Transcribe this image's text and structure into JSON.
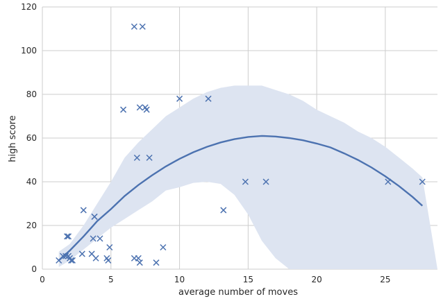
{
  "chart_data": {
    "type": "scatter",
    "title": "",
    "xlabel": "average number of moves",
    "ylabel": "high score",
    "xlim": [
      0,
      28.8
    ],
    "ylim": [
      0,
      120
    ],
    "xticks": [
      0,
      5,
      10,
      15,
      20,
      25
    ],
    "yticks": [
      0,
      20,
      40,
      60,
      80,
      100,
      120
    ],
    "grid": true,
    "marker": "x",
    "colors": {
      "points": "#4c72b0",
      "fit": "#4c72b0",
      "band": "#dde4f1",
      "grid": "#cccccc"
    },
    "points": [
      [
        6.7,
        111
      ],
      [
        7.3,
        111
      ],
      [
        10.0,
        78
      ],
      [
        12.1,
        78
      ],
      [
        7.1,
        74
      ],
      [
        7.5,
        74
      ],
      [
        7.6,
        73
      ],
      [
        5.9,
        73
      ],
      [
        6.9,
        51
      ],
      [
        7.8,
        51
      ],
      [
        14.8,
        40
      ],
      [
        16.3,
        40
      ],
      [
        25.2,
        40
      ],
      [
        27.7,
        40
      ],
      [
        3.0,
        27
      ],
      [
        13.2,
        27
      ],
      [
        3.8,
        24
      ],
      [
        3.8,
        24
      ],
      [
        1.9,
        15
      ],
      [
        1.8,
        15
      ],
      [
        3.7,
        14
      ],
      [
        4.2,
        14
      ],
      [
        8.8,
        10
      ],
      [
        4.9,
        10
      ],
      [
        3.6,
        7
      ],
      [
        2.9,
        7
      ],
      [
        1.2,
        4
      ],
      [
        1.5,
        6
      ],
      [
        1.7,
        6
      ],
      [
        1.9,
        6
      ],
      [
        2.0,
        5
      ],
      [
        2.1,
        4
      ],
      [
        2.2,
        4
      ],
      [
        3.9,
        5
      ],
      [
        4.7,
        5
      ],
      [
        4.8,
        4
      ],
      [
        6.7,
        5
      ],
      [
        7.0,
        5
      ],
      [
        7.1,
        3
      ],
      [
        8.3,
        3
      ]
    ],
    "fit": {
      "curve": [
        [
          1.2,
          4
        ],
        [
          2,
          8.5
        ],
        [
          3,
          15
        ],
        [
          4,
          22
        ],
        [
          5,
          27.5
        ],
        [
          6,
          33.5
        ],
        [
          7,
          38.5
        ],
        [
          8,
          43
        ],
        [
          9,
          47
        ],
        [
          10,
          50.5
        ],
        [
          11,
          53.5
        ],
        [
          12,
          56
        ],
        [
          13,
          58
        ],
        [
          14,
          59.5
        ],
        [
          15,
          60.5
        ],
        [
          16,
          61
        ],
        [
          17,
          60.7
        ],
        [
          18,
          60
        ],
        [
          19,
          59
        ],
        [
          20,
          57.5
        ],
        [
          21,
          55.7
        ],
        [
          22,
          53
        ],
        [
          23,
          50
        ],
        [
          24,
          46.5
        ],
        [
          25,
          42.5
        ],
        [
          26,
          38
        ],
        [
          27,
          33
        ],
        [
          27.7,
          29
        ]
      ],
      "band_upper": [
        [
          1.2,
          8
        ],
        [
          2,
          11.5
        ],
        [
          3,
          20
        ],
        [
          4,
          30
        ],
        [
          5,
          40
        ],
        [
          6,
          51
        ],
        [
          7,
          58
        ],
        [
          8,
          64
        ],
        [
          9,
          70
        ],
        [
          10,
          74
        ],
        [
          11,
          78
        ],
        [
          12,
          81
        ],
        [
          13,
          83
        ],
        [
          14,
          84
        ],
        [
          15,
          84
        ],
        [
          16,
          84
        ],
        [
          17,
          82
        ],
        [
          18,
          80
        ],
        [
          19,
          77
        ],
        [
          20,
          73
        ],
        [
          21,
          70
        ],
        [
          22,
          67
        ],
        [
          23,
          63
        ],
        [
          24,
          60
        ],
        [
          25,
          56
        ],
        [
          26,
          51
        ],
        [
          27,
          46
        ],
        [
          27.7,
          42
        ]
      ],
      "band_lower": [
        [
          1.2,
          1
        ],
        [
          2,
          4
        ],
        [
          3,
          9
        ],
        [
          4,
          14
        ],
        [
          5,
          19
        ],
        [
          6,
          23
        ],
        [
          7,
          27
        ],
        [
          8,
          31
        ],
        [
          9,
          36
        ],
        [
          10,
          37.5
        ],
        [
          11,
          39.5
        ],
        [
          12,
          40
        ],
        [
          13,
          39
        ],
        [
          14,
          34
        ],
        [
          15,
          25
        ],
        [
          16,
          13
        ],
        [
          17,
          5
        ],
        [
          18,
          0
        ],
        [
          28.8,
          0
        ]
      ]
    }
  }
}
